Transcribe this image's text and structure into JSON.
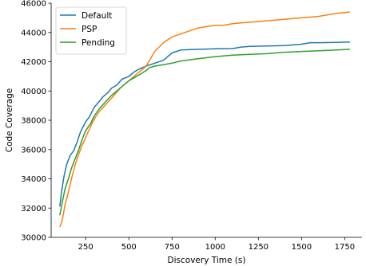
{
  "chart_data": {
    "type": "line",
    "xlabel": "Discovery Time (s)",
    "ylabel": "Code Coverage",
    "xlim": [
      50,
      1850
    ],
    "ylim": [
      30000,
      46000
    ],
    "xticks": [
      250,
      500,
      750,
      1000,
      1250,
      1500,
      1750
    ],
    "yticks": [
      30000,
      32000,
      34000,
      36000,
      38000,
      40000,
      42000,
      44000,
      46000
    ],
    "legend_position": "top-left",
    "grid": false,
    "series": [
      {
        "name": "Default",
        "color": "#1f77b4",
        "x": [
          100,
          110,
          125,
          140,
          160,
          180,
          200,
          220,
          250,
          270,
          300,
          330,
          350,
          380,
          400,
          430,
          460,
          500,
          530,
          560,
          600,
          650,
          700,
          750,
          800,
          900,
          1000,
          1100,
          1150,
          1200,
          1300,
          1400,
          1450,
          1500,
          1550,
          1600,
          1700,
          1780
        ],
        "values": [
          32100,
          33100,
          34200,
          35000,
          35600,
          35900,
          36500,
          37200,
          37900,
          38200,
          38900,
          39300,
          39600,
          39900,
          40200,
          40400,
          40800,
          41000,
          41300,
          41500,
          41700,
          41900,
          42100,
          42600,
          42800,
          42850,
          42880,
          42900,
          43000,
          43050,
          43080,
          43100,
          43150,
          43200,
          43300,
          43300,
          43320,
          43350
        ]
      },
      {
        "name": "PSP",
        "color": "#ff7f0e",
        "x": [
          100,
          115,
          130,
          150,
          170,
          190,
          210,
          230,
          260,
          280,
          300,
          330,
          360,
          400,
          450,
          500,
          530,
          560,
          600,
          620,
          650,
          700,
          750,
          800,
          850,
          900,
          950,
          1000,
          1050,
          1100,
          1150,
          1200,
          1250,
          1300,
          1400,
          1500,
          1600,
          1700,
          1780
        ],
        "values": [
          30700,
          31200,
          32200,
          33100,
          34100,
          35000,
          35700,
          36300,
          37100,
          37600,
          38100,
          38600,
          39000,
          39500,
          40200,
          40700,
          41000,
          41300,
          41700,
          42100,
          42700,
          43300,
          43700,
          43900,
          44100,
          44300,
          44400,
          44480,
          44500,
          44600,
          44650,
          44700,
          44750,
          44800,
          44900,
          45000,
          45100,
          45300,
          45400
        ]
      },
      {
        "name": "Pending",
        "color": "#2ca02c",
        "x": [
          100,
          115,
          130,
          150,
          170,
          190,
          210,
          230,
          250,
          280,
          300,
          330,
          360,
          400,
          450,
          500,
          530,
          560,
          600,
          620,
          650,
          700,
          750,
          800,
          900,
          1000,
          1100,
          1200,
          1300,
          1400,
          1500,
          1600,
          1700,
          1780
        ],
        "values": [
          31500,
          32400,
          33300,
          34000,
          34800,
          35400,
          36000,
          36700,
          37300,
          37800,
          38300,
          38800,
          39200,
          39700,
          40200,
          40700,
          40900,
          41100,
          41400,
          41600,
          41700,
          41800,
          41900,
          42050,
          42200,
          42350,
          42450,
          42500,
          42550,
          42650,
          42700,
          42750,
          42800,
          42850
        ]
      }
    ]
  }
}
